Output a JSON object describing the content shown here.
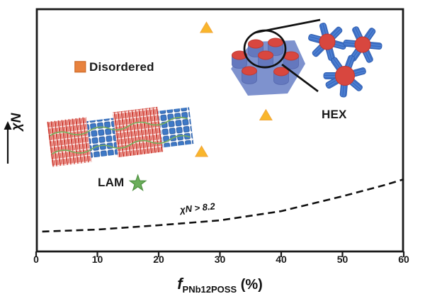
{
  "figure": {
    "kind": "block-copolymer phase diagram"
  },
  "yaxis": {
    "label": "χN"
  },
  "xaxis": {
    "symbol": "f",
    "subscript": "PNb12POSS",
    "unit": "(%)"
  },
  "labels": {
    "disordered": "Disordered",
    "lam": "LAM",
    "hex": "HEX"
  },
  "annotation": {
    "text": "χN > 8.2"
  },
  "palette": {
    "axis": "#1a1a1a",
    "square_orange": "#E8823E",
    "triangle_yellow": "#F9B62B",
    "star_green": "#6BAE5B",
    "illustration_red": "#D8473F",
    "illustration_blue": "#4C7FD1",
    "pentagon_blue": "#7E92CE",
    "green_line": "#79AE5F"
  },
  "chart_data": {
    "type": "scatter",
    "xlabel": "f_PNb12POSS (%)",
    "ylabel": "χN (increasing, qualitative arrow — no numeric scale)",
    "xlim": [
      0,
      60
    ],
    "x_ticks": [
      "0",
      "10",
      "20",
      "30",
      "40",
      "50",
      "60"
    ],
    "grid": false,
    "legend_position": "labels placed next to markers in plot",
    "series": [
      {
        "name": "Disordered",
        "marker": "square",
        "color": "#E8823E",
        "edge": "#CC6A28",
        "points": [
          {
            "f": 7.2,
            "y_frac": 0.76
          }
        ]
      },
      {
        "name": "HEX",
        "marker": "triangle",
        "color": "#F9B62B",
        "edge": "#F2A93C",
        "points": [
          {
            "f": 27.8,
            "y_frac": 0.92
          },
          {
            "f": 27.0,
            "y_frac": 0.41
          },
          {
            "f": 37.5,
            "y_frac": 0.56
          }
        ]
      },
      {
        "name": "LAM",
        "marker": "star",
        "color": "#6BAE5B",
        "edge": "#4E9140",
        "points": [
          {
            "f": 16.6,
            "y_frac": 0.28
          }
        ]
      }
    ],
    "boundary": {
      "label": "χN > 8.2",
      "style": "dashed",
      "points": [
        [
          1,
          0.082
        ],
        [
          10,
          0.09
        ],
        [
          20,
          0.108
        ],
        [
          30,
          0.128
        ],
        [
          40,
          0.166
        ],
        [
          50,
          0.227
        ],
        [
          57,
          0.274
        ],
        [
          60,
          0.297
        ]
      ]
    }
  }
}
